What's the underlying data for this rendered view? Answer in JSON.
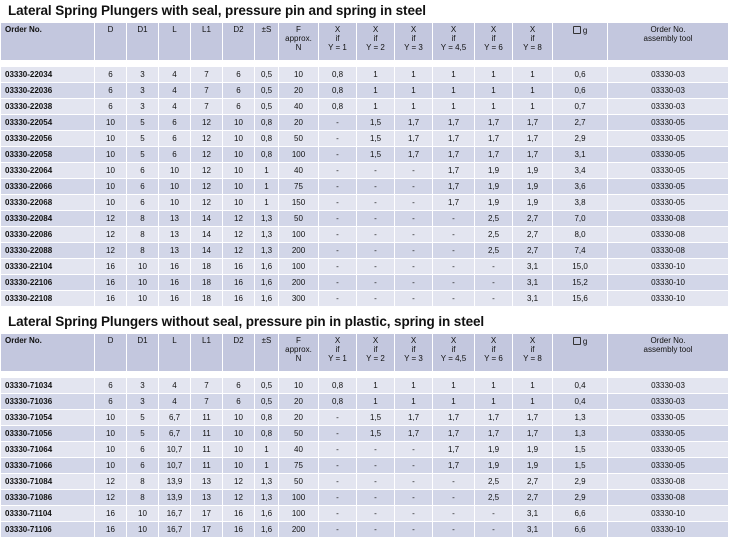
{
  "columns": [
    "Order No.",
    "D",
    "D1",
    "L",
    "L1",
    "D2",
    "±S",
    "F\napprox.\nN",
    "X\nif\nY = 1",
    "X\nif\nY = 2",
    "X\nif\nY = 3",
    "X\nif\nY = 4,5",
    "X\nif\nY = 6",
    "X\nif\nY = 8",
    "g",
    "Order No.\nassembly tool"
  ],
  "weight_icon": "weight-icon",
  "tables": [
    {
      "title": "Lateral Spring Plungers with seal, pressure pin and spring in steel",
      "rows": [
        [
          "03330-22034",
          "6",
          "3",
          "4",
          "7",
          "6",
          "0,5",
          "10",
          "0,8",
          "1",
          "1",
          "1",
          "1",
          "1",
          "0,6",
          "03330-03"
        ],
        [
          "03330-22036",
          "6",
          "3",
          "4",
          "7",
          "6",
          "0,5",
          "20",
          "0,8",
          "1",
          "1",
          "1",
          "1",
          "1",
          "0,6",
          "03330-03"
        ],
        [
          "03330-22038",
          "6",
          "3",
          "4",
          "7",
          "6",
          "0,5",
          "40",
          "0,8",
          "1",
          "1",
          "1",
          "1",
          "1",
          "0,7",
          "03330-03"
        ],
        [
          "03330-22054",
          "10",
          "5",
          "6",
          "12",
          "10",
          "0,8",
          "20",
          "-",
          "1,5",
          "1,7",
          "1,7",
          "1,7",
          "1,7",
          "2,7",
          "03330-05"
        ],
        [
          "03330-22056",
          "10",
          "5",
          "6",
          "12",
          "10",
          "0,8",
          "50",
          "-",
          "1,5",
          "1,7",
          "1,7",
          "1,7",
          "1,7",
          "2,9",
          "03330-05"
        ],
        [
          "03330-22058",
          "10",
          "5",
          "6",
          "12",
          "10",
          "0,8",
          "100",
          "-",
          "1,5",
          "1,7",
          "1,7",
          "1,7",
          "1,7",
          "3,1",
          "03330-05"
        ],
        [
          "03330-22064",
          "10",
          "6",
          "10",
          "12",
          "10",
          "1",
          "40",
          "-",
          "-",
          "-",
          "1,7",
          "1,9",
          "1,9",
          "3,4",
          "03330-05"
        ],
        [
          "03330-22066",
          "10",
          "6",
          "10",
          "12",
          "10",
          "1",
          "75",
          "-",
          "-",
          "-",
          "1,7",
          "1,9",
          "1,9",
          "3,6",
          "03330-05"
        ],
        [
          "03330-22068",
          "10",
          "6",
          "10",
          "12",
          "10",
          "1",
          "150",
          "-",
          "-",
          "-",
          "1,7",
          "1,9",
          "1,9",
          "3,8",
          "03330-05"
        ],
        [
          "03330-22084",
          "12",
          "8",
          "13",
          "14",
          "12",
          "1,3",
          "50",
          "-",
          "-",
          "-",
          "-",
          "2,5",
          "2,7",
          "7,0",
          "03330-08"
        ],
        [
          "03330-22086",
          "12",
          "8",
          "13",
          "14",
          "12",
          "1,3",
          "100",
          "-",
          "-",
          "-",
          "-",
          "2,5",
          "2,7",
          "8,0",
          "03330-08"
        ],
        [
          "03330-22088",
          "12",
          "8",
          "13",
          "14",
          "12",
          "1,3",
          "200",
          "-",
          "-",
          "-",
          "-",
          "2,5",
          "2,7",
          "7,4",
          "03330-08"
        ],
        [
          "03330-22104",
          "16",
          "10",
          "16",
          "18",
          "16",
          "1,6",
          "100",
          "-",
          "-",
          "-",
          "-",
          "-",
          "3,1",
          "15,0",
          "03330-10"
        ],
        [
          "03330-22106",
          "16",
          "10",
          "16",
          "18",
          "16",
          "1,6",
          "200",
          "-",
          "-",
          "-",
          "-",
          "-",
          "3,1",
          "15,2",
          "03330-10"
        ],
        [
          "03330-22108",
          "16",
          "10",
          "16",
          "18",
          "16",
          "1,6",
          "300",
          "-",
          "-",
          "-",
          "-",
          "-",
          "3,1",
          "15,6",
          "03330-10"
        ]
      ]
    },
    {
      "title": "Lateral Spring Plungers without seal, pressure pin in plastic, spring in steel",
      "rows": [
        [
          "03330-71034",
          "6",
          "3",
          "4",
          "7",
          "6",
          "0,5",
          "10",
          "0,8",
          "1",
          "1",
          "1",
          "1",
          "1",
          "0,4",
          "03330-03"
        ],
        [
          "03330-71036",
          "6",
          "3",
          "4",
          "7",
          "6",
          "0,5",
          "20",
          "0,8",
          "1",
          "1",
          "1",
          "1",
          "1",
          "0,4",
          "03330-03"
        ],
        [
          "03330-71054",
          "10",
          "5",
          "6,7",
          "11",
          "10",
          "0,8",
          "20",
          "-",
          "1,5",
          "1,7",
          "1,7",
          "1,7",
          "1,7",
          "1,3",
          "03330-05"
        ],
        [
          "03330-71056",
          "10",
          "5",
          "6,7",
          "11",
          "10",
          "0,8",
          "50",
          "-",
          "1,5",
          "1,7",
          "1,7",
          "1,7",
          "1,7",
          "1,3",
          "03330-05"
        ],
        [
          "03330-71064",
          "10",
          "6",
          "10,7",
          "11",
          "10",
          "1",
          "40",
          "-",
          "-",
          "-",
          "1,7",
          "1,9",
          "1,9",
          "1,5",
          "03330-05"
        ],
        [
          "03330-71066",
          "10",
          "6",
          "10,7",
          "11",
          "10",
          "1",
          "75",
          "-",
          "-",
          "-",
          "1,7",
          "1,9",
          "1,9",
          "1,5",
          "03330-05"
        ],
        [
          "03330-71084",
          "12",
          "8",
          "13,9",
          "13",
          "12",
          "1,3",
          "50",
          "-",
          "-",
          "-",
          "-",
          "2,5",
          "2,7",
          "2,9",
          "03330-08"
        ],
        [
          "03330-71086",
          "12",
          "8",
          "13,9",
          "13",
          "12",
          "1,3",
          "100",
          "-",
          "-",
          "-",
          "-",
          "2,5",
          "2,7",
          "2,9",
          "03330-08"
        ],
        [
          "03330-71104",
          "16",
          "10",
          "16,7",
          "17",
          "16",
          "1,6",
          "100",
          "-",
          "-",
          "-",
          "-",
          "-",
          "3,1",
          "6,6",
          "03330-10"
        ],
        [
          "03330-71106",
          "16",
          "10",
          "16,7",
          "17",
          "16",
          "1,6",
          "200",
          "-",
          "-",
          "-",
          "-",
          "-",
          "3,1",
          "6,6",
          "03330-10"
        ]
      ]
    }
  ]
}
